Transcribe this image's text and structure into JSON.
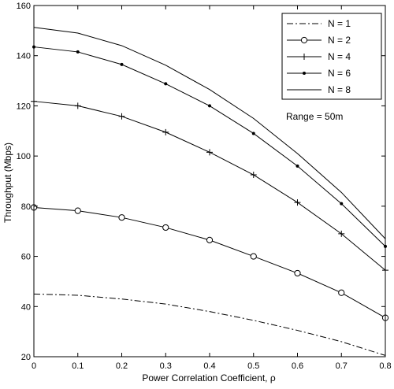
{
  "chart_data": {
    "type": "line",
    "title": "",
    "xlabel": "Power Correlation Coefficient, ρ",
    "ylabel": "Throughput (Mbps)",
    "xlim": [
      0,
      0.8
    ],
    "ylim": [
      20,
      160
    ],
    "xticks": [
      "0",
      "0.1",
      "0.2",
      "0.3",
      "0.4",
      "0.5",
      "0.6",
      "0.7",
      "0.8"
    ],
    "yticks": [
      "20",
      "40",
      "60",
      "80",
      "100",
      "120",
      "140",
      "160"
    ],
    "grid": false,
    "legend_position": "top-right",
    "annotation": "Range = 50m",
    "x": [
      0,
      0.1,
      0.2,
      0.3,
      0.4,
      0.5,
      0.6,
      0.7,
      0.8
    ],
    "series": [
      {
        "name": "N = 1",
        "style": "dashdot",
        "marker": "none",
        "color": "#000000",
        "values": [
          45,
          44.5,
          43,
          41,
          38,
          34.5,
          30.5,
          26,
          20.5
        ]
      },
      {
        "name": "N = 2",
        "style": "solid",
        "marker": "circle",
        "color": "#000000",
        "values": [
          79.5,
          78.2,
          75.5,
          71.5,
          66.5,
          60,
          53.3,
          45.5,
          35.5
        ]
      },
      {
        "name": "N = 4",
        "style": "solid",
        "marker": "plus",
        "color": "#000000",
        "values": [
          121.8,
          120,
          115.8,
          109.5,
          101.5,
          92.5,
          81.5,
          69,
          54.5
        ]
      },
      {
        "name": "N = 6",
        "style": "solid",
        "marker": "dot",
        "color": "#000000",
        "values": [
          143.5,
          141.5,
          136.5,
          128.8,
          120,
          109,
          96,
          81,
          64
        ]
      },
      {
        "name": "N = 8",
        "style": "solid",
        "marker": "none",
        "color": "#000000",
        "values": [
          151.3,
          149,
          144,
          136.2,
          126.5,
          115,
          101,
          85.5,
          67
        ]
      }
    ]
  }
}
